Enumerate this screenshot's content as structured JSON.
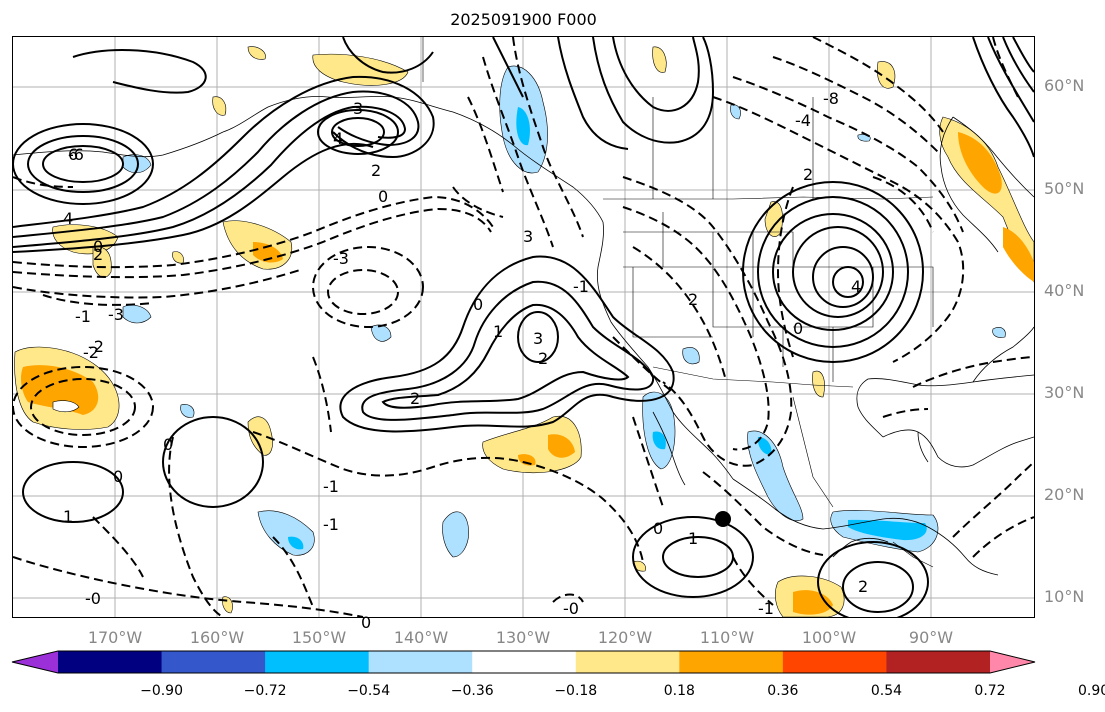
{
  "title": "2025091900 F000",
  "lat_labels": [
    "60°N",
    "50°N",
    "40°N",
    "30°N",
    "20°N",
    "10°N"
  ],
  "lon_labels": [
    "170°W",
    "160°W",
    "150°W",
    "140°W",
    "130°W",
    "120°W",
    "110°W",
    "100°W",
    "90°W"
  ],
  "colorbar": {
    "tick_labels": [
      "−0.90",
      "−0.72",
      "−0.54",
      "−0.36",
      "−0.18",
      "0.18",
      "0.36",
      "0.54",
      "0.72",
      "0.90"
    ],
    "colors": [
      "#9b30d9",
      "#000080",
      "#3457cc",
      "#00bfff",
      "#aee0ff",
      "#ffffff",
      "#ffe88a",
      "#ffa500",
      "#ff4500",
      "#b22222",
      "#ff88aa"
    ]
  },
  "contour_labels": [
    "3",
    "4",
    "2",
    "0",
    "6",
    "4",
    "2",
    "-3",
    "-2",
    "-1",
    "0",
    "-3",
    "-2",
    "2",
    "3",
    "2",
    "1",
    "0",
    "3",
    "-1",
    "-0",
    "0",
    "-1",
    "-1",
    "1",
    "-0",
    "0",
    "-8",
    "-4",
    "2",
    "4",
    "0",
    "-6",
    "0",
    "1",
    "0",
    "-1",
    "2",
    "2"
  ],
  "marker": "filled-circle"
}
